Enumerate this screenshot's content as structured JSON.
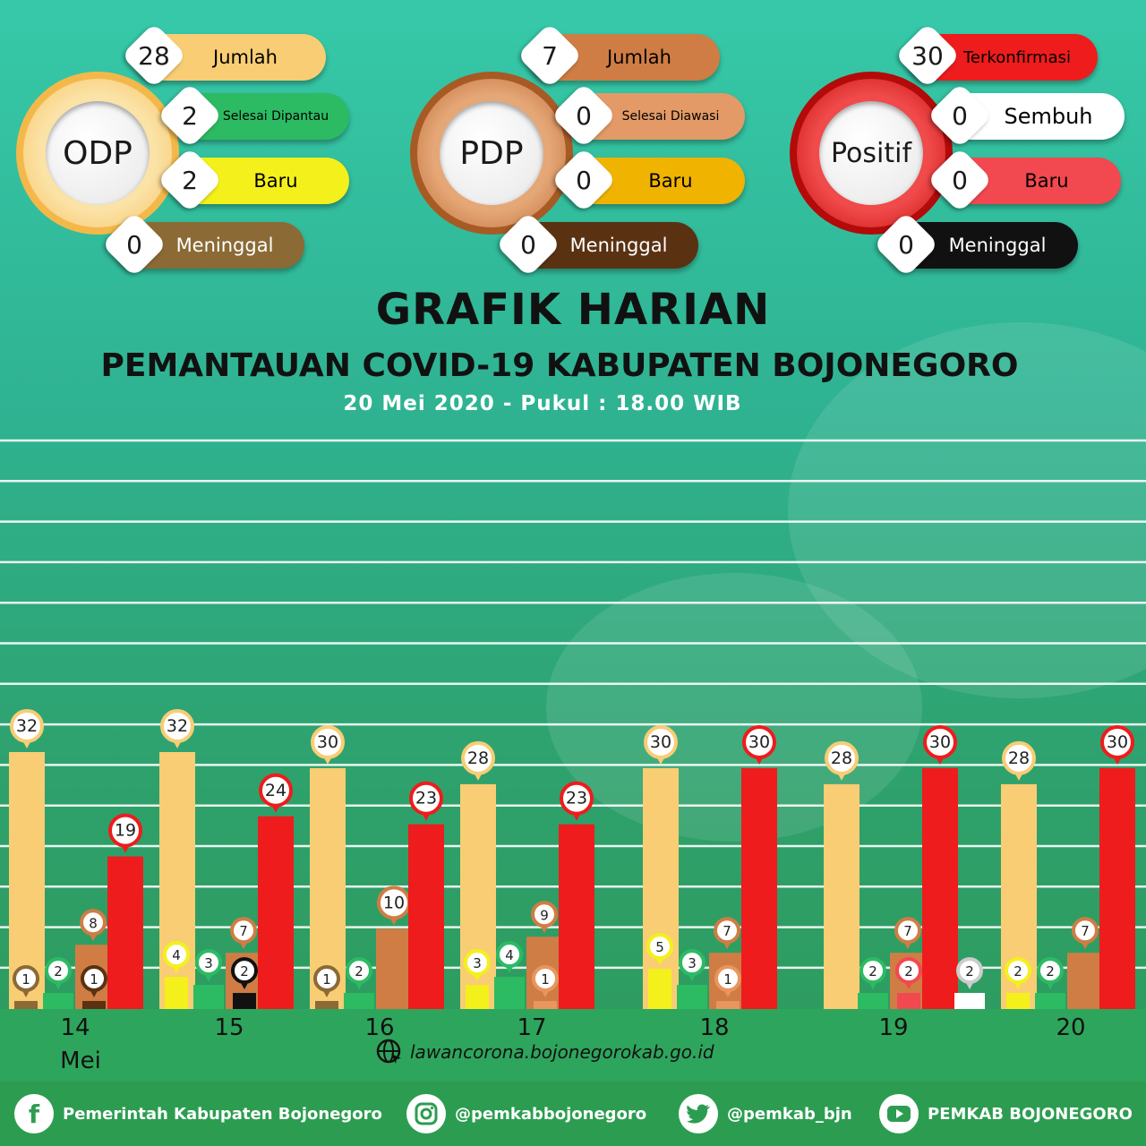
{
  "colors": {
    "odp": "#f9cd74",
    "odp_done": "#2cbb63",
    "odp_new": "#f4f01c",
    "odp_dead": "#8b6a35",
    "pdp": "#cf7d44",
    "pdp_dead": "#5a3212",
    "pos": "#ee1c1c",
    "pos_recov": "#ffffff",
    "pos_new": "#f2484f",
    "pos_dead": "#111111"
  },
  "summary": {
    "odp": {
      "title": "ODP",
      "items": [
        {
          "value": "28",
          "label": "Jumlah"
        },
        {
          "value": "2",
          "label": "Selesai Dipantau"
        },
        {
          "value": "2",
          "label": "Baru"
        },
        {
          "value": "0",
          "label": "Meninggal"
        }
      ]
    },
    "pdp": {
      "title": "PDP",
      "items": [
        {
          "value": "7",
          "label": "Jumlah"
        },
        {
          "value": "0",
          "label": "Selesai Diawasi"
        },
        {
          "value": "0",
          "label": "Baru"
        },
        {
          "value": "0",
          "label": "Meninggal"
        }
      ]
    },
    "positif": {
      "title": "Positif",
      "items": [
        {
          "value": "30",
          "label": "Terkonfirmasi"
        },
        {
          "value": "0",
          "label": "Sembuh"
        },
        {
          "value": "0",
          "label": "Baru"
        },
        {
          "value": "0",
          "label": "Meninggal"
        }
      ]
    }
  },
  "title": {
    "line1": "GRAFIK HARIAN",
    "line2": "PEMANTAUAN COVID-19 KABUPATEN BOJONEGORO",
    "line3": "20 Mei 2020 - Pukul : 18.00 WIB"
  },
  "chart_data": {
    "type": "bar",
    "categories": [
      "14",
      "15",
      "16",
      "17",
      "18",
      "19",
      "20"
    ],
    "month_label": "Mei",
    "ylim": [
      0,
      70
    ],
    "grid": true,
    "bars": [
      {
        "day": "14",
        "cat": "odp",
        "value": 32,
        "label": "32"
      },
      {
        "day": "14",
        "cat": "odp_dead",
        "value": 1,
        "label": "1"
      },
      {
        "day": "14",
        "cat": "odp_done",
        "value": 2,
        "label": "2"
      },
      {
        "day": "14",
        "cat": "pdp",
        "value": 8,
        "label": "8"
      },
      {
        "day": "14",
        "cat": "pdp_dead",
        "value": 1,
        "label": "1"
      },
      {
        "day": "14",
        "cat": "pos",
        "value": 19,
        "label": "19"
      },
      {
        "day": "15",
        "cat": "odp",
        "value": 32,
        "label": "32"
      },
      {
        "day": "15",
        "cat": "odp_new",
        "value": 4,
        "label": "4"
      },
      {
        "day": "15",
        "cat": "odp_done",
        "value": 3,
        "label": "3"
      },
      {
        "day": "15",
        "cat": "pdp",
        "value": 7,
        "label": "7"
      },
      {
        "day": "15",
        "cat": "pos_dead",
        "value": 2,
        "label": "2"
      },
      {
        "day": "15",
        "cat": "pos",
        "value": 24,
        "label": "24"
      },
      {
        "day": "16",
        "cat": "odp",
        "value": 30,
        "label": "30"
      },
      {
        "day": "16",
        "cat": "odp_dead",
        "value": 1,
        "label": "1"
      },
      {
        "day": "16",
        "cat": "odp_done",
        "value": 2,
        "label": "2"
      },
      {
        "day": "16",
        "cat": "pdp",
        "value": 10,
        "label": "10"
      },
      {
        "day": "16",
        "cat": "pos",
        "value": 23,
        "label": "23"
      },
      {
        "day": "17",
        "cat": "odp",
        "value": 28,
        "label": "28"
      },
      {
        "day": "17",
        "cat": "odp_new",
        "value": 3,
        "label": "3"
      },
      {
        "day": "17",
        "cat": "odp_done",
        "value": 4,
        "label": "4"
      },
      {
        "day": "17",
        "cat": "pdp",
        "value": 9,
        "label": "9"
      },
      {
        "day": "17",
        "cat": "pdp_new",
        "value": 1,
        "label": "1"
      },
      {
        "day": "17",
        "cat": "pos",
        "value": 23,
        "label": "23"
      },
      {
        "day": "18",
        "cat": "odp",
        "value": 30,
        "label": "30"
      },
      {
        "day": "18",
        "cat": "odp_new",
        "value": 5,
        "label": "5"
      },
      {
        "day": "18",
        "cat": "odp_done",
        "value": 3,
        "label": "3"
      },
      {
        "day": "18",
        "cat": "pdp",
        "value": 7,
        "label": "7"
      },
      {
        "day": "18",
        "cat": "pdp_new",
        "value": 1,
        "label": "1"
      },
      {
        "day": "18",
        "cat": "pos",
        "value": 30,
        "label": "30"
      },
      {
        "day": "19",
        "cat": "odp",
        "value": 28,
        "label": "28"
      },
      {
        "day": "19",
        "cat": "odp_done",
        "value": 2,
        "label": "2"
      },
      {
        "day": "19",
        "cat": "pdp",
        "value": 7,
        "label": "7"
      },
      {
        "day": "19",
        "cat": "pos_new",
        "value": 2,
        "label": "2"
      },
      {
        "day": "19",
        "cat": "pos",
        "value": 30,
        "label": "30"
      },
      {
        "day": "19",
        "cat": "pos_recov",
        "value": 2,
        "label": "2"
      },
      {
        "day": "20",
        "cat": "odp",
        "value": 28,
        "label": "28"
      },
      {
        "day": "20",
        "cat": "odp_new",
        "value": 2,
        "label": "2"
      },
      {
        "day": "20",
        "cat": "odp_done",
        "value": 2,
        "label": "2"
      },
      {
        "day": "20",
        "cat": "pdp",
        "value": 7,
        "label": "7"
      },
      {
        "day": "20",
        "cat": "pos",
        "value": 30,
        "label": "30"
      }
    ]
  },
  "footer": {
    "url": "lawancorona.bojonegorokab.go.id",
    "facebook": "Pemerintah Kabupaten Bojonegoro",
    "instagram": "@pemkabbojonegoro",
    "twitter": "@pemkab_bjn",
    "youtube": "PEMKAB BOJONEGORO"
  }
}
